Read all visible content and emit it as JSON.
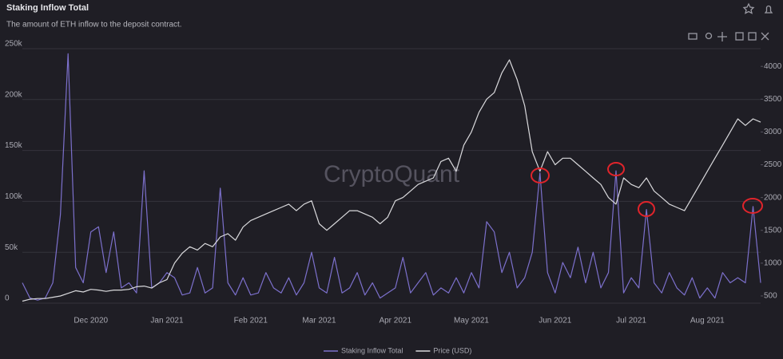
{
  "header": {
    "title": "Staking Inflow Total",
    "subtitle": "The amount of ETH inflow to the deposit contract."
  },
  "watermark": "CryptoQuant",
  "chart_data": {
    "type": "line",
    "categories": [
      null,
      null,
      null,
      null,
      null,
      null,
      null,
      null,
      null,
      "Dec 2020",
      null,
      null,
      null,
      null,
      null,
      null,
      null,
      null,
      null,
      "Jan 2021",
      null,
      null,
      null,
      null,
      null,
      null,
      null,
      null,
      null,
      null,
      "Feb 2021",
      null,
      null,
      null,
      null,
      null,
      null,
      null,
      null,
      "Mar 2021",
      null,
      null,
      null,
      null,
      null,
      null,
      null,
      null,
      null,
      "Apr 2021",
      null,
      null,
      null,
      null,
      null,
      null,
      null,
      null,
      null,
      "May 2021",
      null,
      null,
      null,
      null,
      null,
      null,
      null,
      null,
      null,
      null,
      "Jun 2021",
      null,
      null,
      null,
      null,
      null,
      null,
      null,
      null,
      null,
      "Jul 2021",
      null,
      null,
      null,
      null,
      null,
      null,
      null,
      null,
      null,
      "Aug 2021",
      null,
      null,
      null,
      null,
      null,
      null,
      null
    ],
    "series": [
      {
        "name": "Staking Inflow Total",
        "color": "#7c70cc",
        "values": [
          20000,
          5000,
          3000,
          5000,
          20000,
          87000,
          245000,
          35000,
          20000,
          70000,
          75000,
          30000,
          70000,
          15000,
          20000,
          10000,
          130000,
          15000,
          20000,
          30000,
          25000,
          8000,
          10000,
          35000,
          10000,
          15000,
          113000,
          20000,
          8000,
          25000,
          8000,
          10000,
          30000,
          15000,
          10000,
          25000,
          8000,
          20000,
          50000,
          15000,
          10000,
          45000,
          10000,
          15000,
          30000,
          8000,
          20000,
          5000,
          10000,
          15000,
          45000,
          10000,
          20000,
          30000,
          8000,
          15000,
          10000,
          25000,
          10000,
          30000,
          15000,
          80000,
          70000,
          30000,
          50000,
          15000,
          25000,
          50000,
          128000,
          30000,
          10000,
          40000,
          25000,
          55000,
          20000,
          50000,
          15000,
          30000,
          130000,
          10000,
          25000,
          15000,
          92000,
          20000,
          10000,
          30000,
          15000,
          8000,
          25000,
          5000,
          15000,
          5000,
          30000,
          20000,
          25000,
          20000,
          95000,
          20000
        ]
      },
      {
        "name": "Price (USD)",
        "color": "#d9d9dc",
        "axis": "y2",
        "values": [
          420,
          450,
          460,
          460,
          480,
          500,
          540,
          580,
          560,
          600,
          590,
          570,
          590,
          590,
          600,
          640,
          650,
          620,
          700,
          750,
          1000,
          1150,
          1250,
          1200,
          1300,
          1250,
          1400,
          1450,
          1350,
          1550,
          1650,
          1700,
          1750,
          1800,
          1850,
          1900,
          1800,
          1900,
          1950,
          1600,
          1500,
          1600,
          1700,
          1800,
          1800,
          1750,
          1700,
          1600,
          1700,
          1950,
          2000,
          2100,
          2200,
          2250,
          2300,
          2550,
          2600,
          2400,
          2800,
          3000,
          3300,
          3500,
          3600,
          3900,
          4100,
          3800,
          3400,
          2700,
          2400,
          2700,
          2500,
          2600,
          2600,
          2500,
          2400,
          2300,
          2200,
          2000,
          1900,
          2300,
          2200,
          2150,
          2300,
          2100,
          2000,
          1900,
          1850,
          1800,
          2000,
          2200,
          2400,
          2600,
          2800,
          3000,
          3200,
          3100,
          3200,
          3150
        ]
      }
    ],
    "ylim": [
      0,
      250000
    ],
    "yticks": [
      0,
      {
        "value": 50000,
        "label": "50k"
      },
      {
        "value": 100000,
        "label": "100k"
      },
      {
        "value": 150000,
        "label": "150k"
      },
      {
        "value": 200000,
        "label": "200k"
      },
      {
        "value": 250000,
        "label": "250k"
      }
    ],
    "y2lim": [
      390,
      4270
    ],
    "y2ticks": [
      500,
      1000,
      1500,
      2000,
      2500,
      3000,
      3500,
      4000
    ],
    "grid": true
  }
}
